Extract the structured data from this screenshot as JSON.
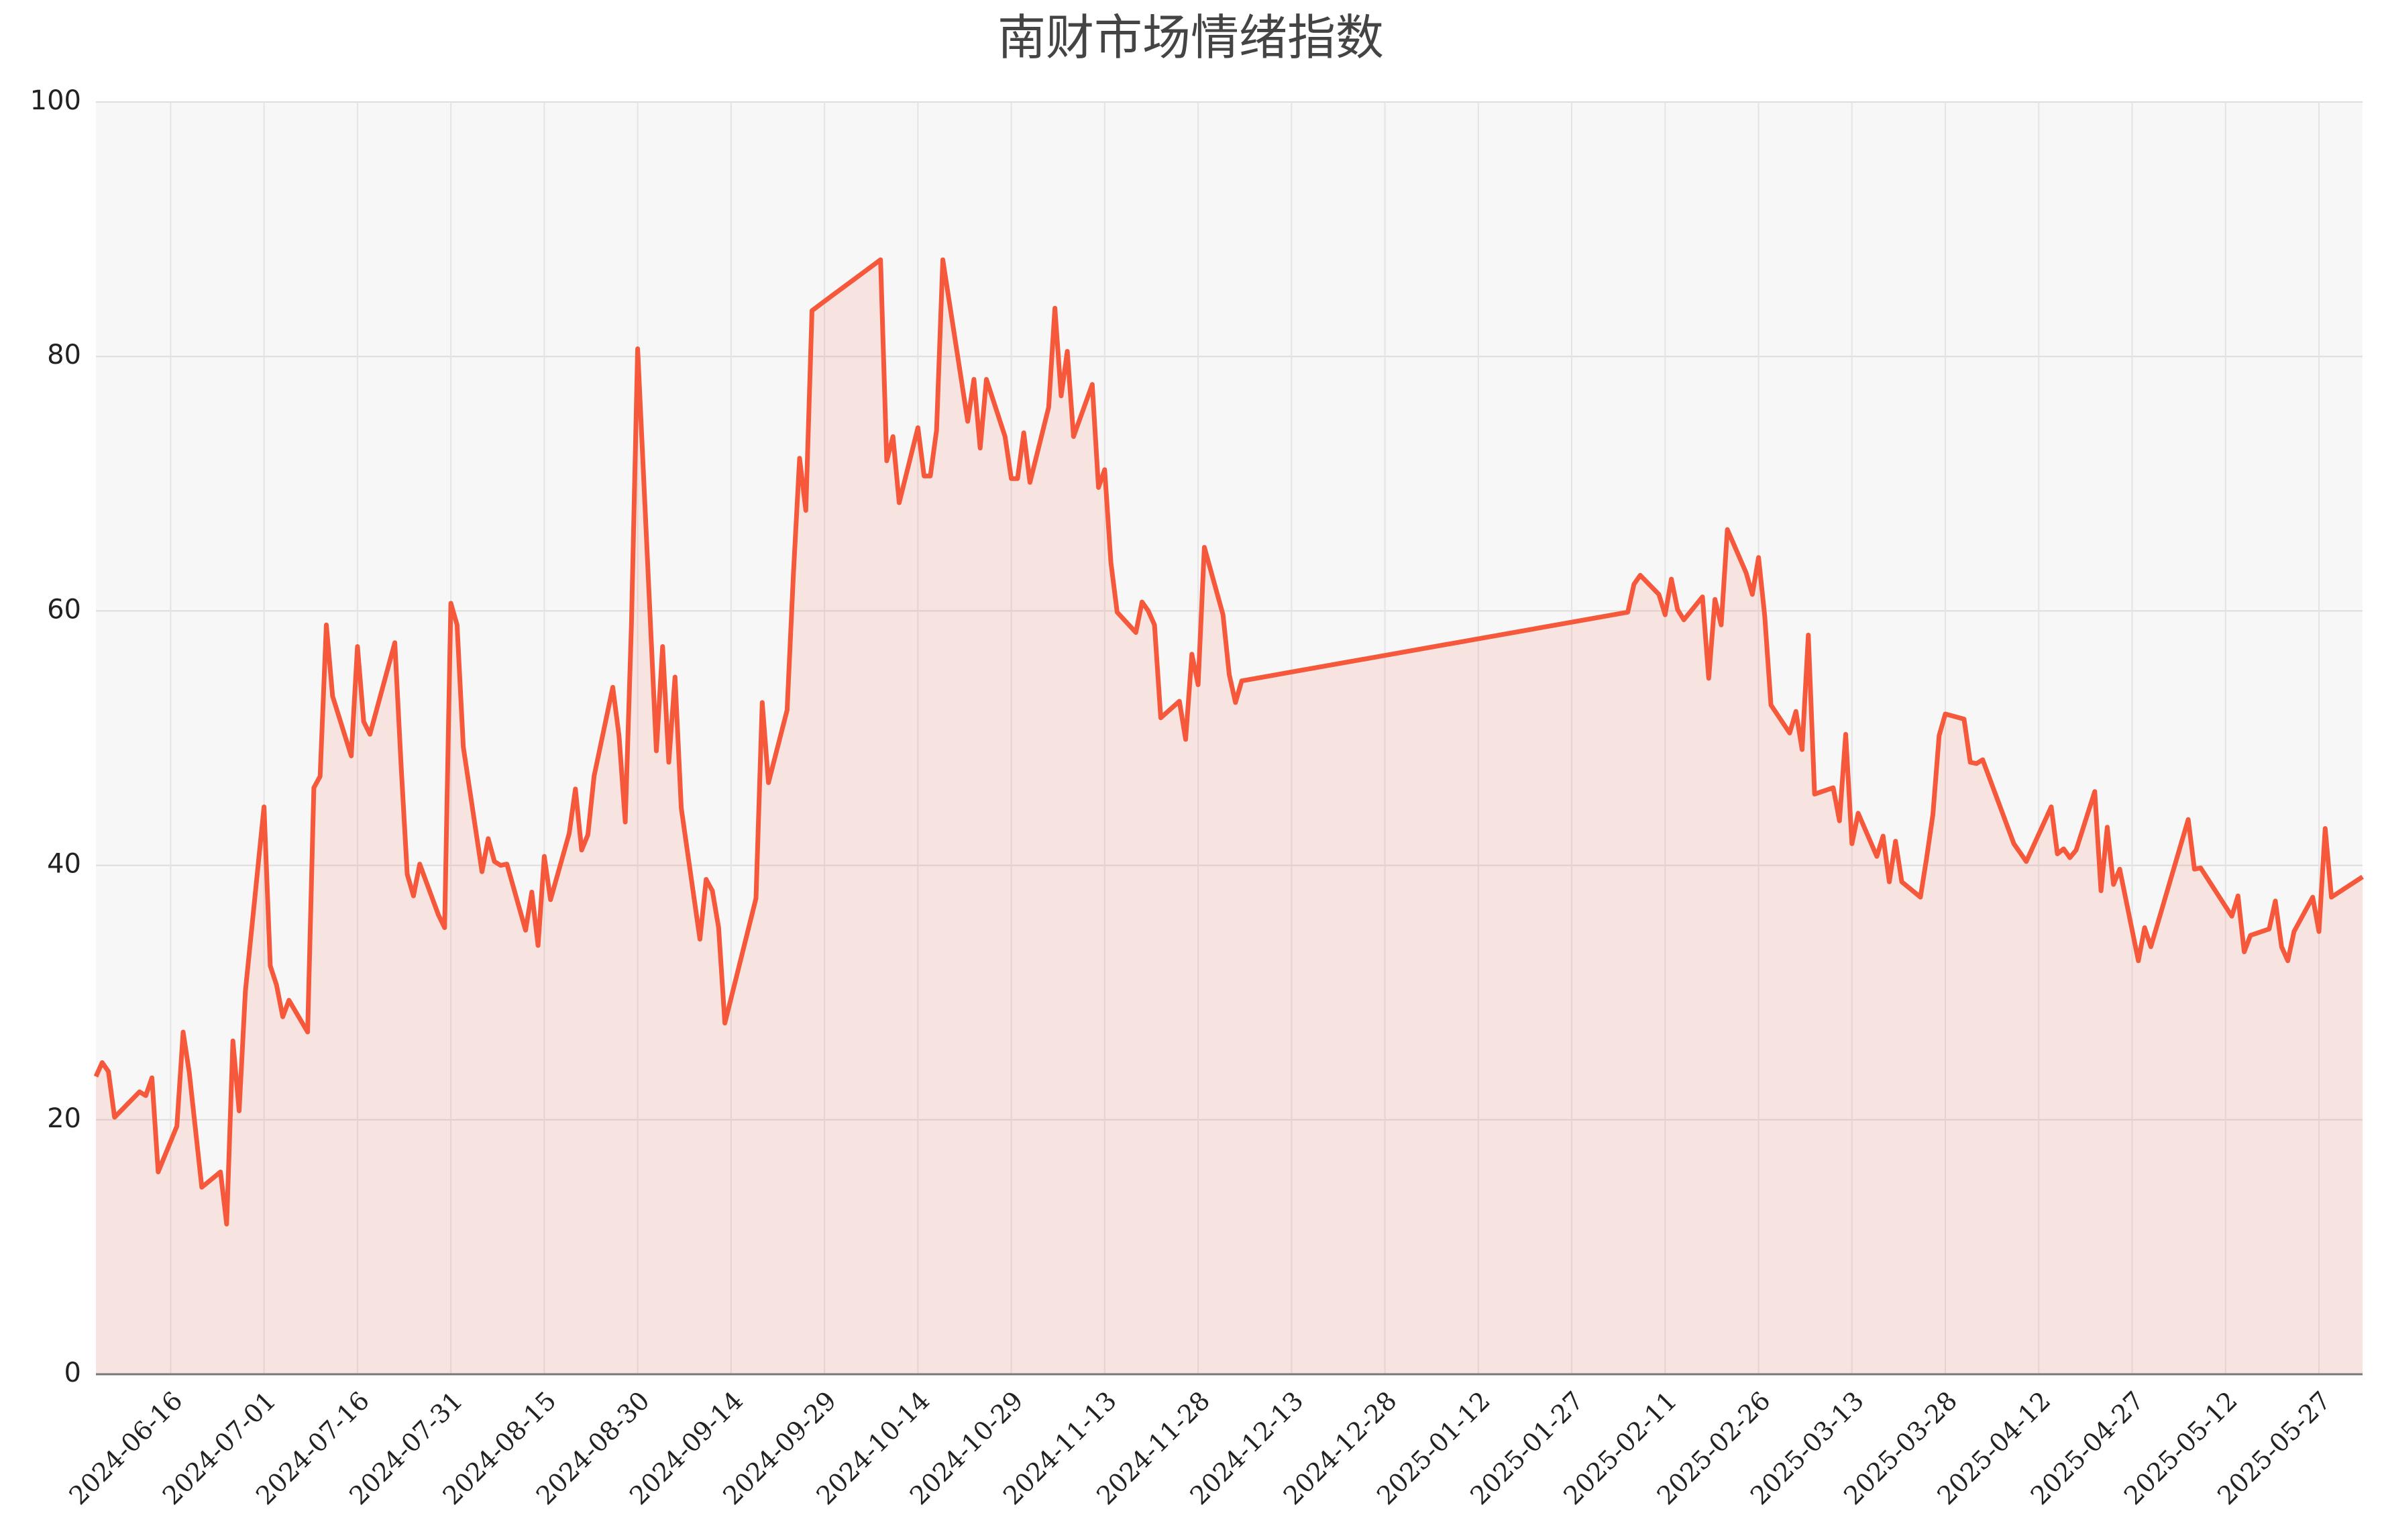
{
  "chart_data": {
    "type": "line",
    "title": "南财市场情绪指数",
    "color": "#f5583a",
    "fill": true,
    "grid": true,
    "xlim": [
      "2024-06-04",
      "2025-06-03"
    ],
    "ylim": [
      0,
      100
    ],
    "yticks": [
      0,
      20,
      40,
      60,
      80,
      100
    ],
    "xticks": [
      "2024-06-16",
      "2024-07-01",
      "2024-07-16",
      "2024-07-31",
      "2024-08-15",
      "2024-08-30",
      "2024-09-14",
      "2024-09-29",
      "2024-10-14",
      "2024-10-29",
      "2024-11-13",
      "2024-11-28",
      "2024-12-13",
      "2024-12-28",
      "2025-01-12",
      "2025-01-27",
      "2025-02-11",
      "2025-02-26",
      "2025-03-13",
      "2025-03-28",
      "2025-04-12",
      "2025-04-27",
      "2025-05-12",
      "2025-05-27"
    ],
    "x": [
      "2024-06-04",
      "2024-06-05",
      "2024-06-06",
      "2024-06-07",
      "2024-06-11",
      "2024-06-12",
      "2024-06-13",
      "2024-06-14",
      "2024-06-17",
      "2024-06-18",
      "2024-06-19",
      "2024-06-21",
      "2024-06-24",
      "2024-06-25",
      "2024-06-26",
      "2024-06-27",
      "2024-06-28",
      "2024-07-01",
      "2024-07-02",
      "2024-07-03",
      "2024-07-04",
      "2024-07-05",
      "2024-07-08",
      "2024-07-09",
      "2024-07-10",
      "2024-07-11",
      "2024-07-12",
      "2024-07-15",
      "2024-07-16",
      "2024-07-17",
      "2024-07-18",
      "2024-07-22",
      "2024-07-23",
      "2024-07-24",
      "2024-07-25",
      "2024-07-26",
      "2024-07-29",
      "2024-07-30",
      "2024-07-31",
      "2024-08-01",
      "2024-08-02",
      "2024-08-05",
      "2024-08-06",
      "2024-08-07",
      "2024-08-08",
      "2024-08-09",
      "2024-08-12",
      "2024-08-13",
      "2024-08-14",
      "2024-08-15",
      "2024-08-16",
      "2024-08-19",
      "2024-08-20",
      "2024-08-21",
      "2024-08-22",
      "2024-08-23",
      "2024-08-26",
      "2024-08-27",
      "2024-08-28",
      "2024-08-29",
      "2024-08-30",
      "2024-09-02",
      "2024-09-03",
      "2024-09-04",
      "2024-09-05",
      "2024-09-06",
      "2024-09-09",
      "2024-09-10",
      "2024-09-11",
      "2024-09-12",
      "2024-09-13",
      "2024-09-18",
      "2024-09-19",
      "2024-09-20",
      "2024-09-23",
      "2024-09-24",
      "2024-09-25",
      "2024-09-26",
      "2024-09-27",
      "2024-09-30",
      "2024-10-08",
      "2024-10-09",
      "2024-10-10",
      "2024-10-11",
      "2024-10-14",
      "2024-10-15",
      "2024-10-16",
      "2024-10-17",
      "2024-10-18",
      "2024-10-21",
      "2024-10-22",
      "2024-10-23",
      "2024-10-24",
      "2024-10-25",
      "2024-10-28",
      "2024-10-29",
      "2024-10-30",
      "2024-10-31",
      "2024-11-01",
      "2024-11-04",
      "2024-11-05",
      "2024-11-06",
      "2024-11-07",
      "2024-11-08",
      "2024-11-11",
      "2024-11-12",
      "2024-11-13",
      "2024-11-14",
      "2024-11-15",
      "2024-11-18",
      "2024-11-19",
      "2024-11-20",
      "2024-11-21",
      "2024-11-22",
      "2024-11-25",
      "2024-11-26",
      "2024-11-27",
      "2024-11-28",
      "2024-11-29",
      "2024-12-02",
      "2024-12-03",
      "2024-12-04",
      "2024-12-05",
      "2025-02-05",
      "2025-02-06",
      "2025-02-07",
      "2025-02-10",
      "2025-02-11",
      "2025-02-12",
      "2025-02-13",
      "2025-02-14",
      "2025-02-17",
      "2025-02-18",
      "2025-02-19",
      "2025-02-20",
      "2025-02-21",
      "2025-02-24",
      "2025-02-25",
      "2025-02-26",
      "2025-02-27",
      "2025-02-28",
      "2025-03-03",
      "2025-03-04",
      "2025-03-05",
      "2025-03-06",
      "2025-03-07",
      "2025-03-10",
      "2025-03-11",
      "2025-03-12",
      "2025-03-13",
      "2025-03-14",
      "2025-03-17",
      "2025-03-18",
      "2025-03-19",
      "2025-03-20",
      "2025-03-21",
      "2025-03-24",
      "2025-03-25",
      "2025-03-26",
      "2025-03-27",
      "2025-03-28",
      "2025-03-31",
      "2025-04-01",
      "2025-04-02",
      "2025-04-03",
      "2025-04-08",
      "2025-04-10",
      "2025-04-14",
      "2025-04-15",
      "2025-04-16",
      "2025-04-17",
      "2025-04-18",
      "2025-04-21",
      "2025-04-22",
      "2025-04-23",
      "2025-04-24",
      "2025-04-25",
      "2025-04-28",
      "2025-04-29",
      "2025-04-30",
      "2025-05-06",
      "2025-05-07",
      "2025-05-08",
      "2025-05-13",
      "2025-05-14",
      "2025-05-15",
      "2025-05-16",
      "2025-05-19",
      "2025-05-20",
      "2025-05-21",
      "2025-05-22",
      "2025-05-23",
      "2025-05-26",
      "2025-05-27",
      "2025-05-28",
      "2025-05-29",
      "2025-06-03"
    ],
    "values": [
      23.4,
      24.5,
      23.8,
      20.2,
      22.2,
      21.9,
      23.3,
      15.9,
      19.5,
      26.9,
      23.7,
      14.7,
      15.9,
      11.8,
      26.2,
      20.7,
      30.1,
      44.6,
      32.1,
      30.6,
      28.1,
      29.4,
      26.9,
      46.1,
      47.0,
      58.9,
      53.3,
      48.6,
      57.2,
      51.3,
      50.3,
      57.5,
      47.9,
      39.3,
      37.6,
      40.1,
      36.1,
      35.1,
      60.6,
      58.9,
      49.3,
      39.5,
      42.1,
      40.3,
      40.0,
      40.1,
      34.9,
      37.9,
      33.7,
      40.7,
      37.3,
      42.5,
      46.0,
      41.2,
      42.4,
      47.0,
      54.0,
      50.2,
      43.4,
      58.9,
      80.6,
      49.0,
      57.2,
      48.1,
      54.8,
      44.5,
      34.2,
      38.9,
      38.0,
      35.1,
      27.6,
      37.4,
      52.8,
      46.5,
      52.2,
      62.8,
      72.0,
      67.9,
      83.6,
      84.7,
      87.6,
      71.8,
      73.7,
      68.5,
      74.4,
      70.6,
      70.6,
      74.2,
      87.6,
      78.1,
      74.9,
      78.2,
      72.8,
      78.2,
      73.7,
      70.4,
      70.4,
      74.0,
      70.1,
      76.0,
      83.8,
      76.9,
      80.4,
      73.7,
      77.8,
      69.7,
      71.1,
      63.8,
      59.9,
      58.3,
      60.7,
      60.0,
      58.9,
      51.6,
      52.9,
      49.9,
      56.6,
      54.2,
      65.0,
      59.7,
      55.0,
      52.8,
      54.5,
      59.9,
      62.1,
      62.8,
      61.3,
      59.7,
      62.5,
      60.1,
      59.3,
      61.1,
      54.7,
      60.9,
      58.9,
      66.4,
      63.0,
      61.3,
      64.2,
      59.6,
      52.6,
      50.4,
      52.1,
      49.1,
      58.1,
      45.6,
      46.1,
      43.5,
      50.3,
      41.7,
      44.1,
      40.7,
      42.3,
      38.7,
      41.9,
      38.7,
      37.5,
      40.6,
      44.0,
      50.2,
      51.9,
      51.5,
      48.1,
      48.0,
      48.3,
      41.7,
      40.3,
      44.6,
      40.9,
      41.3,
      40.6,
      41.2,
      45.8,
      38.0,
      43.0,
      38.5,
      39.7,
      32.5,
      35.1,
      33.6,
      43.6,
      39.7,
      39.8,
      36.0,
      37.6,
      33.2,
      34.5,
      35.0,
      37.2,
      33.6,
      32.5,
      34.8,
      37.5,
      34.8,
      42.9,
      37.5,
      39.1
    ]
  }
}
